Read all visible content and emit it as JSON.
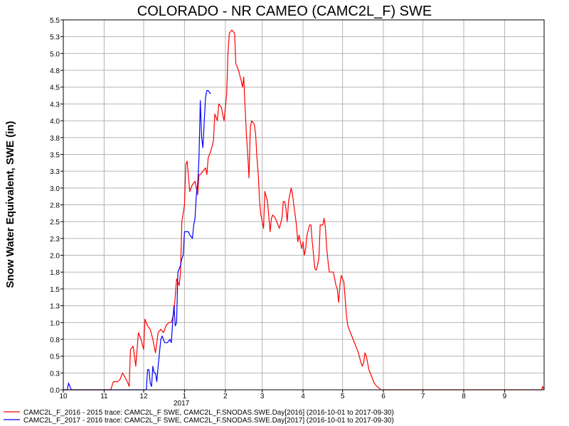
{
  "chart_data": {
    "type": "line",
    "title": "COLORADO - NR CAMEO (CAMC2L_F) SWE",
    "ylabel": "Snow Water Equivalent, SWE (in)",
    "xlabel": "",
    "ylim": [
      0.0,
      5.5
    ],
    "yticks": [
      "0.0",
      "0.3",
      "0.5",
      "0.8",
      "1.0",
      "1.3",
      "1.5",
      "1.8",
      "2.0",
      "2.3",
      "2.5",
      "2.8",
      "3.0",
      "3.3",
      "3.5",
      "3.8",
      "4.0",
      "4.3",
      "4.5",
      "4.8",
      "5.0",
      "5.3",
      "5.5"
    ],
    "xticks": [
      "10",
      "11",
      "12",
      "1",
      "2",
      "3",
      "4",
      "5",
      "6",
      "7",
      "8",
      "9"
    ],
    "year_label": "2017",
    "grid": true,
    "legend_position": "bottom",
    "series": [
      {
        "name": "CAMC2L_F_2016 - 2015 trace: CAMC2L_F SWE, CAMC2L_F.SNODAS.SWE.Day[2016] (2016-10-01 to 2017-09-30)",
        "color": "#ff0000",
        "points": [
          [
            0,
            0
          ],
          [
            36,
            0
          ],
          [
            38,
            0.12
          ],
          [
            41,
            0.12
          ],
          [
            43,
            0.15
          ],
          [
            45,
            0.25
          ],
          [
            47,
            0.18
          ],
          [
            49,
            0.1
          ],
          [
            50,
            0.05
          ],
          [
            51,
            0.6
          ],
          [
            53,
            0.65
          ],
          [
            55,
            0.35
          ],
          [
            57,
            0.85
          ],
          [
            59,
            0.75
          ],
          [
            61,
            0.6
          ],
          [
            62,
            1.05
          ],
          [
            64,
            0.95
          ],
          [
            66,
            0.9
          ],
          [
            68,
            0.75
          ],
          [
            70,
            0.55
          ],
          [
            72,
            0.85
          ],
          [
            74,
            0.9
          ],
          [
            76,
            0.85
          ],
          [
            78,
            0.95
          ],
          [
            80,
            1.0
          ],
          [
            82,
            1.0
          ],
          [
            84,
            1.15
          ],
          [
            86,
            1.65
          ],
          [
            88,
            1.55
          ],
          [
            89,
            1.75
          ],
          [
            90,
            2.5
          ],
          [
            92,
            2.75
          ],
          [
            93,
            3.35
          ],
          [
            94,
            3.4
          ],
          [
            96,
            2.95
          ],
          [
            98,
            3.05
          ],
          [
            100,
            3.1
          ],
          [
            102,
            2.9
          ],
          [
            103,
            3.2
          ],
          [
            104,
            3.2
          ],
          [
            106,
            3.25
          ],
          [
            108,
            3.3
          ],
          [
            109,
            3.2
          ],
          [
            110,
            3.45
          ],
          [
            112,
            3.55
          ],
          [
            114,
            3.7
          ],
          [
            115,
            4.1
          ],
          [
            117,
            4.0
          ],
          [
            118,
            4.25
          ],
          [
            120,
            4.2
          ],
          [
            122,
            4.0
          ],
          [
            124,
            4.4
          ],
          [
            125,
            5.0
          ],
          [
            126,
            5.3
          ],
          [
            128,
            5.35
          ],
          [
            130,
            5.3
          ],
          [
            131,
            4.85
          ],
          [
            133,
            4.75
          ],
          [
            135,
            4.6
          ],
          [
            136,
            4.5
          ],
          [
            137,
            4.65
          ],
          [
            138,
            4.2
          ],
          [
            139,
            3.8
          ],
          [
            140,
            3.5
          ],
          [
            141,
            3.15
          ],
          [
            142,
            3.9
          ],
          [
            143,
            4.0
          ],
          [
            145,
            3.95
          ],
          [
            146,
            3.8
          ],
          [
            147,
            3.45
          ],
          [
            148,
            3.2
          ],
          [
            149,
            2.8
          ],
          [
            150,
            2.6
          ],
          [
            151,
            2.5
          ],
          [
            152,
            2.4
          ],
          [
            153,
            2.95
          ],
          [
            155,
            2.8
          ],
          [
            157,
            2.35
          ],
          [
            158,
            2.55
          ],
          [
            159,
            2.6
          ],
          [
            161,
            2.55
          ],
          [
            163,
            2.45
          ],
          [
            164,
            2.4
          ],
          [
            166,
            2.55
          ],
          [
            167,
            2.8
          ],
          [
            168,
            2.8
          ],
          [
            169,
            2.7
          ],
          [
            170,
            2.5
          ],
          [
            171,
            2.8
          ],
          [
            173,
            3.0
          ],
          [
            174,
            2.9
          ],
          [
            175,
            2.75
          ],
          [
            177,
            2.45
          ],
          [
            178,
            2.2
          ],
          [
            179,
            2.3
          ],
          [
            181,
            2.1
          ],
          [
            182,
            2.2
          ],
          [
            183,
            2.0
          ],
          [
            184,
            2.1
          ],
          [
            185,
            2.3
          ],
          [
            187,
            2.45
          ],
          [
            188,
            2.45
          ],
          [
            189,
            2.2
          ],
          [
            190,
            2.0
          ],
          [
            191,
            1.8
          ],
          [
            192,
            1.78
          ],
          [
            193,
            1.85
          ],
          [
            194,
            1.95
          ],
          [
            195,
            2.45
          ],
          [
            197,
            2.45
          ],
          [
            198,
            2.55
          ],
          [
            199,
            2.4
          ],
          [
            200,
            2.1
          ],
          [
            201,
            1.9
          ],
          [
            202,
            1.75
          ],
          [
            203,
            1.75
          ],
          [
            205,
            1.75
          ],
          [
            207,
            1.55
          ],
          [
            208,
            1.5
          ],
          [
            209,
            1.3
          ],
          [
            210,
            1.55
          ],
          [
            211,
            1.7
          ],
          [
            213,
            1.6
          ],
          [
            214,
            1.35
          ],
          [
            215,
            1.1
          ],
          [
            216,
            0.95
          ],
          [
            218,
            0.85
          ],
          [
            220,
            0.75
          ],
          [
            222,
            0.65
          ],
          [
            224,
            0.55
          ],
          [
            226,
            0.4
          ],
          [
            227,
            0.35
          ],
          [
            228,
            0.4
          ],
          [
            229,
            0.55
          ],
          [
            230,
            0.5
          ],
          [
            232,
            0.3
          ],
          [
            234,
            0.2
          ],
          [
            236,
            0.1
          ],
          [
            238,
            0.05
          ],
          [
            240,
            0.02
          ],
          [
            241,
            0.0
          ],
          [
            363,
            0.0
          ],
          [
            364,
            0.05
          ],
          [
            365,
            0.0
          ]
        ]
      },
      {
        "name": "CAMC2L_F_2017 - 2016 trace: CAMC2L_F SWE, CAMC2L_F.SNODAS.SWE.Day[2017] (2016-10-01 to 2017-09-30)",
        "color": "#0000ff",
        "points": [
          [
            0,
            0
          ],
          [
            3,
            0
          ],
          [
            4,
            0.1
          ],
          [
            5,
            0.05
          ],
          [
            6,
            0
          ],
          [
            47,
            0
          ],
          [
            63,
            0
          ],
          [
            64,
            0.3
          ],
          [
            65,
            0.3
          ],
          [
            66,
            0.1
          ],
          [
            67,
            0.05
          ],
          [
            68,
            0.35
          ],
          [
            69,
            0.25
          ],
          [
            70,
            0.25
          ],
          [
            71,
            0.12
          ],
          [
            72,
            0.35
          ],
          [
            73,
            0.55
          ],
          [
            74,
            0.75
          ],
          [
            75,
            0.8
          ],
          [
            76,
            0.75
          ],
          [
            77,
            0.7
          ],
          [
            79,
            0.7
          ],
          [
            81,
            0.75
          ],
          [
            82,
            0.7
          ],
          [
            83,
            1.0
          ],
          [
            84,
            1.25
          ],
          [
            85,
            0.95
          ],
          [
            86,
            1.0
          ],
          [
            87,
            1.75
          ],
          [
            88,
            1.8
          ],
          [
            89,
            1.85
          ],
          [
            90,
            1.95
          ],
          [
            91,
            2.0
          ],
          [
            92,
            2.35
          ],
          [
            93,
            2.35
          ],
          [
            95,
            2.35
          ],
          [
            96,
            2.3
          ],
          [
            97,
            2.28
          ],
          [
            98,
            2.25
          ],
          [
            99,
            2.45
          ],
          [
            100,
            2.55
          ],
          [
            101,
            2.9
          ],
          [
            102,
            3.05
          ],
          [
            103,
            3.45
          ],
          [
            104,
            4.3
          ],
          [
            105,
            3.75
          ],
          [
            106,
            3.6
          ],
          [
            107,
            4.0
          ],
          [
            108,
            4.35
          ],
          [
            109,
            4.45
          ],
          [
            110,
            4.45
          ],
          [
            111,
            4.42
          ],
          [
            112,
            4.4
          ]
        ]
      }
    ]
  }
}
